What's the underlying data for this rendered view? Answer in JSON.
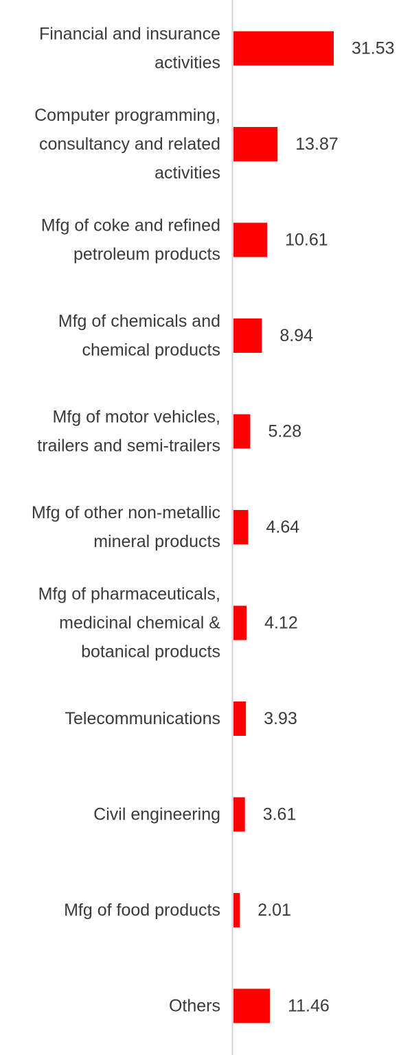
{
  "chart_data": {
    "type": "bar",
    "orientation": "horizontal",
    "categories": [
      [
        "Financial and insurance",
        "activities"
      ],
      [
        "Computer programming,",
        "consultancy and related",
        "activities"
      ],
      [
        "Mfg of coke and refined",
        "petroleum products"
      ],
      [
        "Mfg of chemicals and",
        "chemical products"
      ],
      [
        "Mfg of motor vehicles,",
        "trailers and semi-trailers"
      ],
      [
        "Mfg of other non-metallic",
        "mineral products"
      ],
      [
        "Mfg of pharmaceuticals,",
        "medicinal chemical &",
        "botanical products"
      ],
      [
        "Telecommunications"
      ],
      [
        "Civil engineering"
      ],
      [
        "Mfg of food products"
      ],
      [
        "Others"
      ]
    ],
    "values": [
      31.53,
      13.87,
      10.61,
      8.94,
      5.28,
      4.64,
      4.12,
      3.93,
      3.61,
      2.01,
      11.46
    ],
    "value_labels": [
      "31.53",
      "13.87",
      "10.61",
      "8.94",
      "5.28",
      "4.64",
      "4.12",
      "3.93",
      "3.61",
      "2.01",
      "11.46"
    ],
    "bar_color": "#ff0000",
    "axis_color": "#d0d0d0",
    "xlim": [
      0,
      31.53
    ],
    "title": "",
    "xlabel": "",
    "ylabel": "",
    "grid": false,
    "legend": "none"
  }
}
